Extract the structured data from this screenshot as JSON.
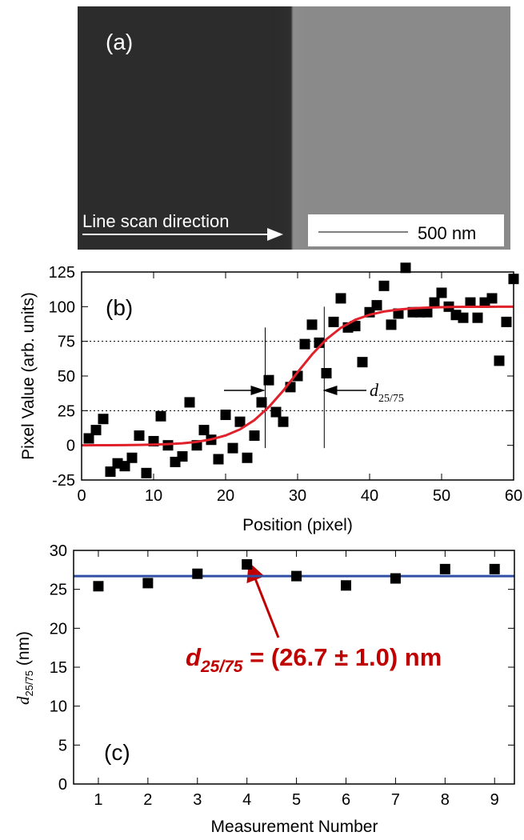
{
  "figure": {
    "panel_label": "(a)",
    "scan_label": "Line scan direction",
    "scale_bar": "500 nm"
  },
  "chart_data": [
    {
      "type": "scatter",
      "panel_label": "(b)",
      "xlabel": "Position (pixel)",
      "ylabel": "Pixel Value (arb. units)",
      "xlim": [
        0,
        60
      ],
      "ylim": [
        -25,
        125
      ],
      "xticks": [
        0,
        10,
        20,
        30,
        40,
        50,
        60
      ],
      "yticks": [
        -25,
        0,
        25,
        50,
        75,
        100,
        125
      ],
      "hlines": [
        25,
        75
      ],
      "vlines": [
        {
          "x": 25.5,
          "y": [
            -2,
            85
          ]
        },
        {
          "x": 33.7,
          "y": [
            -2,
            100
          ]
        }
      ],
      "annotation": {
        "main": "d",
        "sub": "25/75"
      },
      "series": [
        {
          "style": "markers",
          "color": "#000000",
          "x": [
            1,
            2,
            3,
            4,
            5,
            6,
            7,
            8,
            9,
            10,
            11,
            12,
            13,
            14,
            15,
            16,
            17,
            18,
            19,
            20,
            21,
            22,
            23,
            24,
            25,
            26,
            27,
            28,
            29,
            30,
            31,
            32,
            33,
            34,
            35,
            36,
            37,
            38,
            39,
            40,
            41,
            42,
            43,
            44,
            45,
            46,
            47,
            48,
            49,
            50,
            51,
            52,
            53,
            54,
            55,
            56,
            57,
            58,
            59,
            60
          ],
          "values": [
            5,
            11,
            19,
            -19,
            -13,
            -15,
            -9,
            7,
            -20,
            3,
            21,
            0,
            -12,
            -8,
            31,
            0,
            11,
            4,
            -10,
            22,
            -2,
            17,
            -9,
            7,
            31,
            47,
            24,
            17,
            42,
            50,
            73,
            87,
            74,
            52,
            89,
            106,
            85,
            86,
            60,
            96,
            101,
            115,
            87,
            95,
            128,
            96,
            96,
            96,
            103,
            110,
            100,
            94,
            92,
            103,
            92,
            103,
            106,
            61,
            89,
            120
          ]
        },
        {
          "style": "line",
          "color": "#e0202a",
          "x": [
            0,
            2,
            4,
            6,
            8,
            10,
            12,
            14,
            16,
            18,
            20,
            22,
            24,
            26,
            28,
            30,
            32,
            34,
            36,
            38,
            40,
            42,
            44,
            46,
            48,
            50,
            52,
            54,
            56,
            58,
            60
          ],
          "values": [
            0,
            0.1,
            0.1,
            0.2,
            0.3,
            0.5,
            0.9,
            1.5,
            2.5,
            4.3,
            7.1,
            11.5,
            18.2,
            27.6,
            39.4,
            52.7,
            65.5,
            76.5,
            84.7,
            90.5,
            94.2,
            96.5,
            97.9,
            98.8,
            99.3,
            99.6,
            99.8,
            99.9,
            99.9,
            100,
            100
          ]
        }
      ]
    },
    {
      "type": "scatter",
      "panel_label": "(c)",
      "xlabel": "Measurement Number",
      "ylabel": {
        "main": "d",
        "sub": "25/75",
        "rest": " (nm)"
      },
      "xlim": [
        0.5,
        9.4
      ],
      "ylim": [
        0,
        30
      ],
      "xticks": [
        1,
        2,
        3,
        4,
        5,
        6,
        7,
        8,
        9
      ],
      "yticks": [
        0,
        5,
        10,
        15,
        20,
        25,
        30
      ],
      "hline": {
        "value": 26.7,
        "color": "#2e4fa3"
      },
      "annotation": {
        "main": "d",
        "sub": "25/75",
        "rest": " = (26.7 ± 1.0) nm",
        "color": "#c00000"
      },
      "series": [
        {
          "style": "markers",
          "color": "#000000",
          "x": [
            1,
            2,
            3,
            4,
            5,
            6,
            7,
            8,
            9
          ],
          "values": [
            25.4,
            25.8,
            27.0,
            28.2,
            26.7,
            25.5,
            26.4,
            27.6,
            27.6
          ]
        }
      ]
    }
  ]
}
